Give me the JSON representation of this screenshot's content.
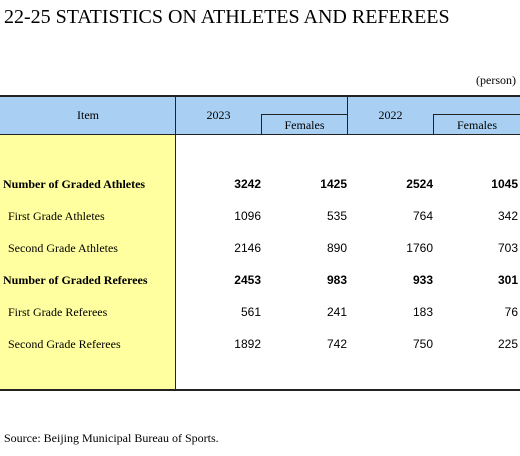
{
  "title": "22-25  STATISTICS ON ATHLETES AND REFEREES",
  "unit": "(person)",
  "header": {
    "item": "Item",
    "years": [
      "2023",
      "2022"
    ],
    "sub": [
      "Females",
      "Females"
    ]
  },
  "rows": [
    {
      "label": "Number of Graded Athletes",
      "bold": true,
      "values": [
        3242,
        1425,
        2524,
        1045
      ]
    },
    {
      "label": "First Grade Athletes",
      "bold": false,
      "values": [
        1096,
        535,
        764,
        342
      ]
    },
    {
      "label": "Second Grade Athletes",
      "bold": false,
      "values": [
        2146,
        890,
        1760,
        703
      ]
    },
    {
      "label": "Number of Graded Referees",
      "bold": true,
      "values": [
        2453,
        983,
        933,
        301
      ]
    },
    {
      "label": "First Grade Referees",
      "bold": false,
      "values": [
        561,
        241,
        183,
        76
      ]
    },
    {
      "label": "Second Grade Referees",
      "bold": false,
      "values": [
        1892,
        742,
        750,
        225
      ]
    }
  ],
  "source": "Source: Beijing Municipal Bureau of Sports."
}
